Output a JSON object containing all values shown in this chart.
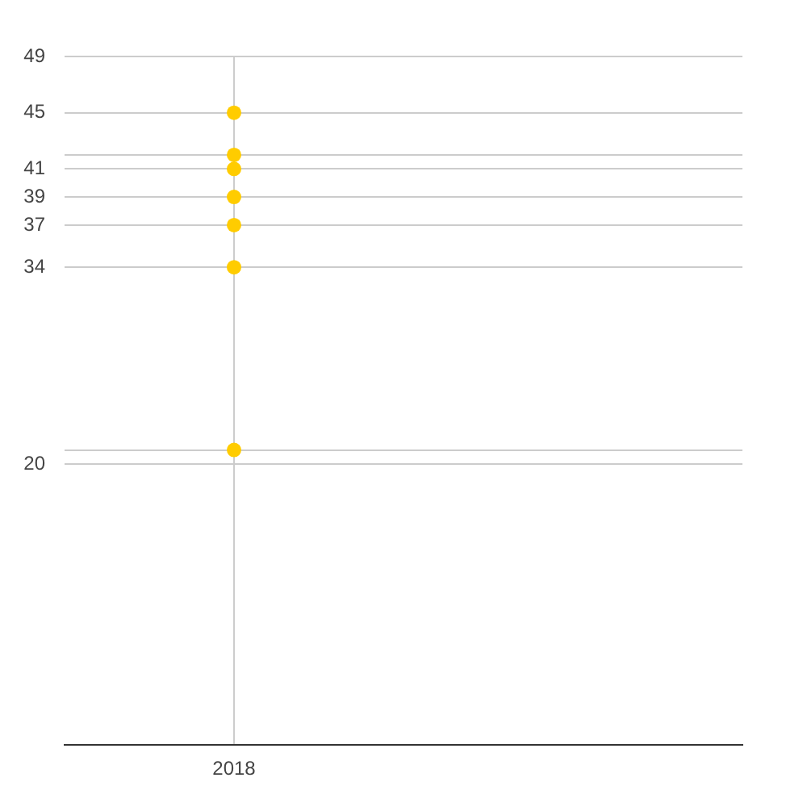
{
  "chart_data": {
    "type": "scatter",
    "categories": [
      "2018",
      null
    ],
    "series": [
      {
        "values": [
          45,
          null
        ],
        "color": "#ffcc00"
      },
      {
        "values": [
          42,
          null
        ],
        "color": "#ffcc00"
      },
      {
        "values": [
          41,
          null
        ],
        "color": "#ffcc00"
      },
      {
        "values": [
          39,
          null
        ],
        "color": "#ffcc00"
      },
      {
        "values": [
          37,
          null
        ],
        "color": "#ffcc00"
      },
      {
        "values": [
          34,
          null
        ],
        "color": "#ffcc00"
      },
      {
        "values": [
          21,
          null
        ],
        "color": "#ffcc00"
      }
    ],
    "marker": "circle",
    "ylim": [
      0,
      49
    ],
    "yticks": [
      49,
      45,
      {
        "value": 42,
        "label": null
      },
      41,
      39,
      37,
      34,
      {
        "value": 21,
        "label": null
      },
      20
    ],
    "grid": true,
    "legend": false
  }
}
